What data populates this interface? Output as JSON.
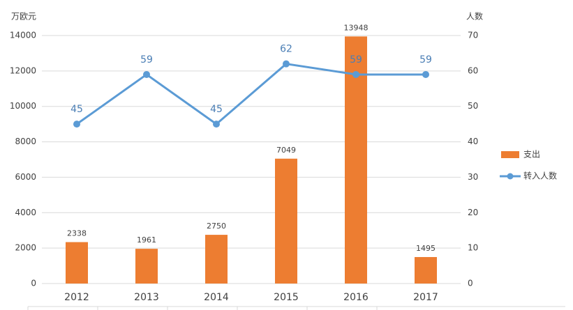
{
  "chart_data": {
    "type": "bar",
    "y_label": "万欧元",
    "y2_label": "人数",
    "categories": [
      "2012",
      "2013",
      "2014",
      "2015",
      "2016",
      "2017"
    ],
    "series": [
      {
        "name": "支出",
        "type": "bar",
        "color": "#ed7d31",
        "values": [
          2338,
          1961,
          2750,
          7049,
          13948,
          1495
        ]
      },
      {
        "name": "转入人数",
        "type": "line",
        "axis": "y2",
        "color": "#5b9bd5",
        "values": [
          45,
          59,
          45,
          62,
          59,
          59
        ]
      }
    ],
    "ylim": [
      0,
      14000
    ],
    "yticks": [
      0,
      2000,
      4000,
      6000,
      8000,
      10000,
      12000,
      14000
    ],
    "y2lim": [
      0,
      70
    ],
    "y2ticks": [
      0,
      10,
      20,
      30,
      40,
      50,
      60,
      70
    ],
    "grid": true,
    "legend": "right"
  }
}
